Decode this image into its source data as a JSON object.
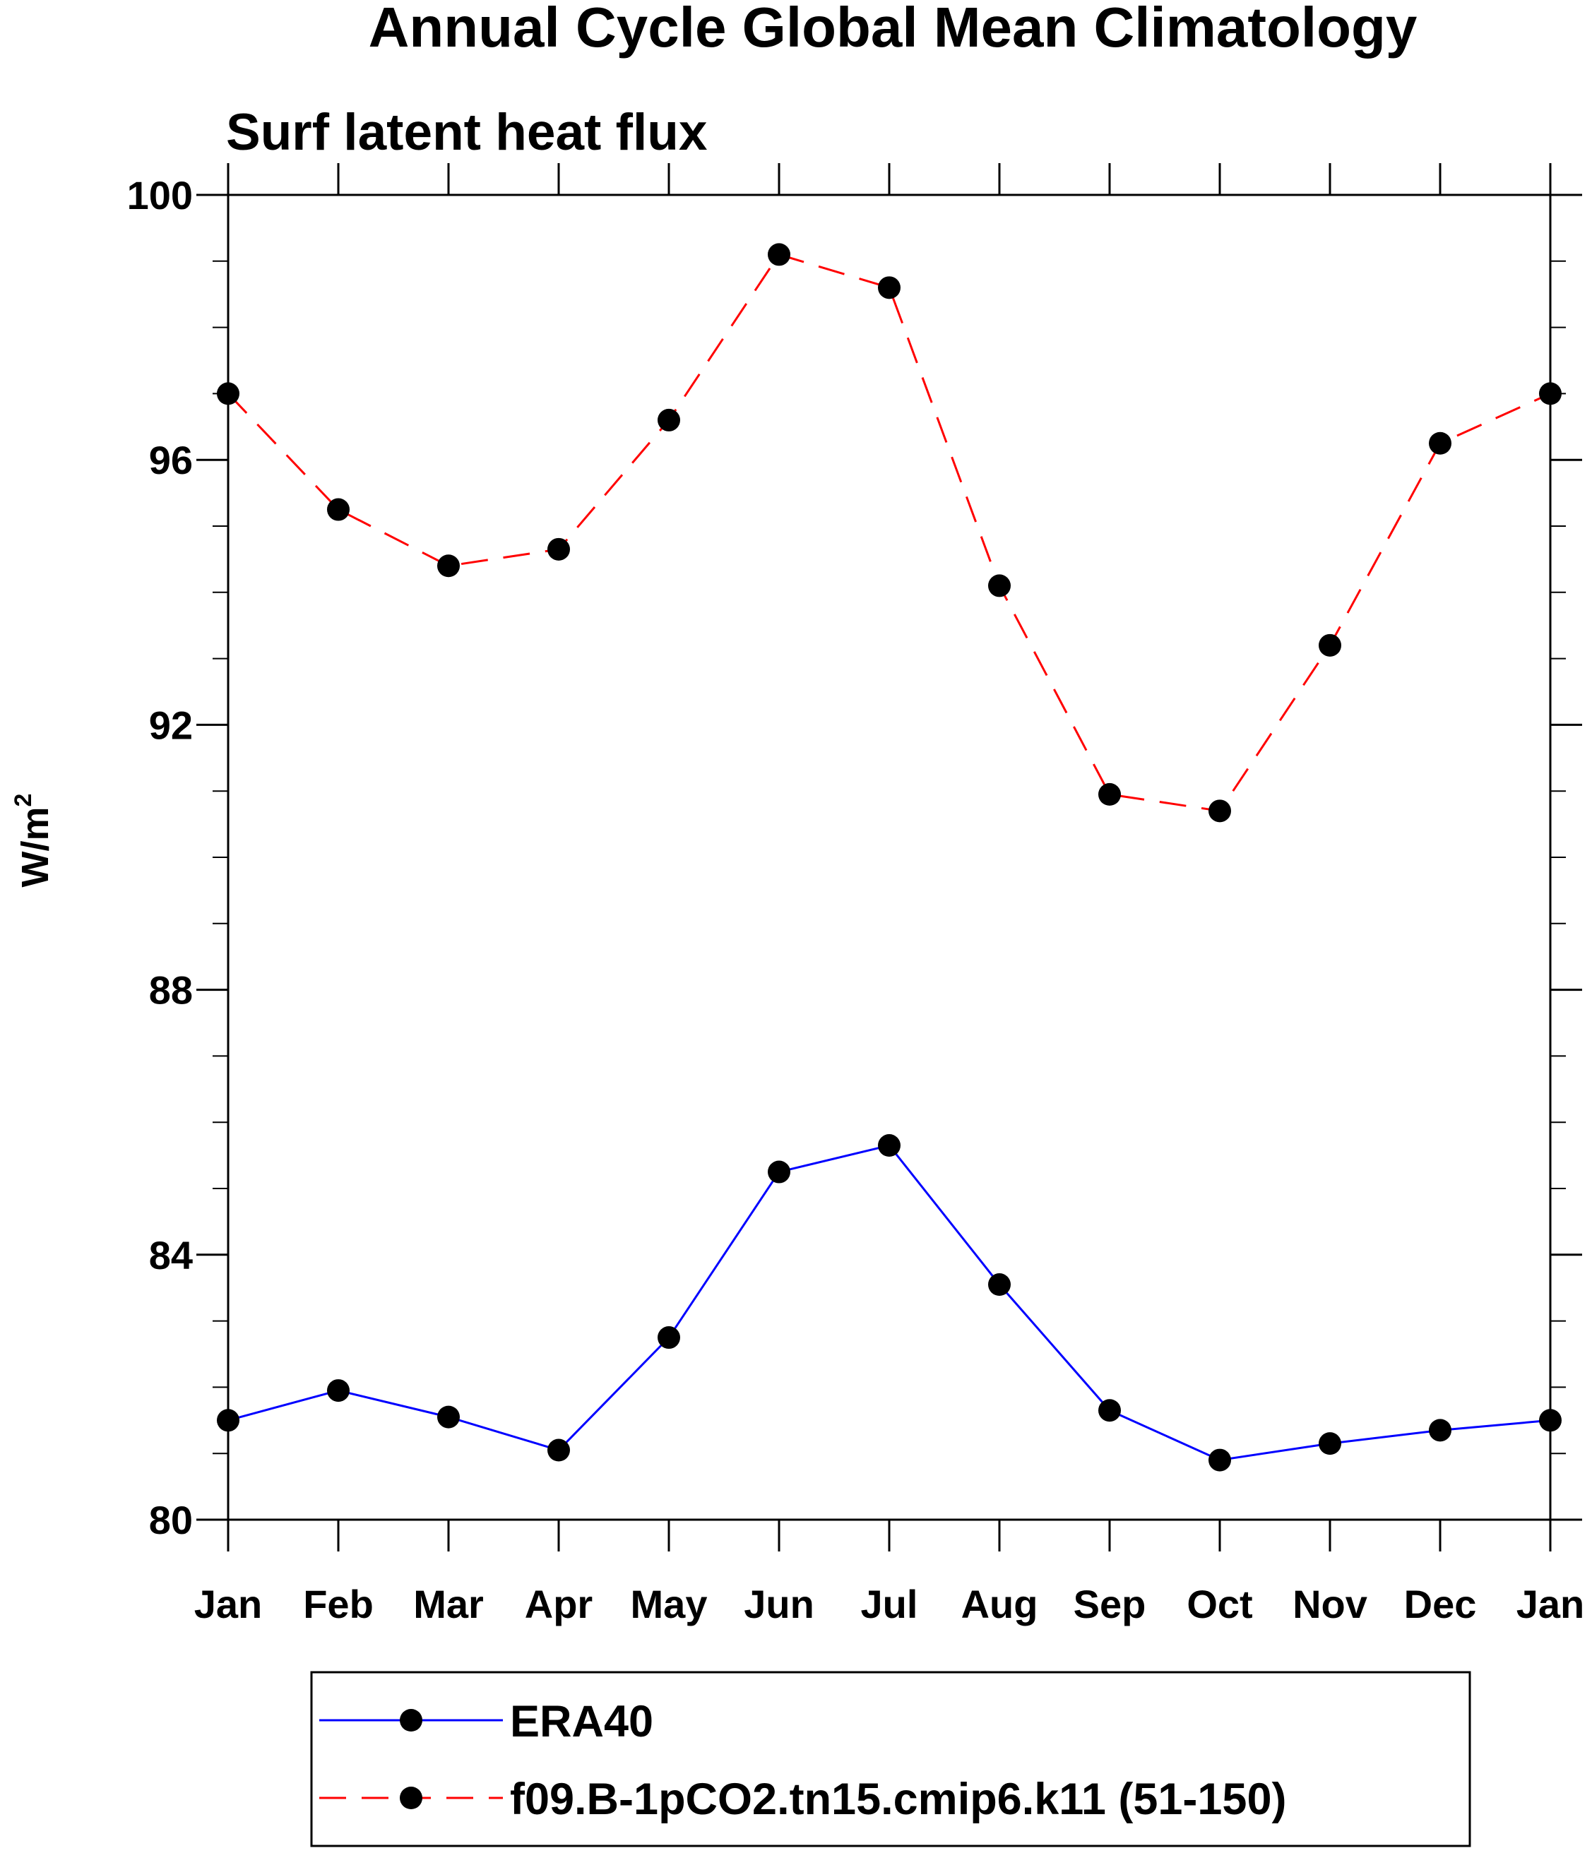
{
  "chart_data": {
    "type": "line",
    "title": "Annual Cycle Global Mean Climatology",
    "subtitle": "Surf latent heat flux",
    "ylabel": "W/m",
    "ylabel_superscript": "2",
    "xlabel": "",
    "categories": [
      "Jan",
      "Feb",
      "Mar",
      "Apr",
      "May",
      "Jun",
      "Jul",
      "Aug",
      "Sep",
      "Oct",
      "Nov",
      "Dec",
      "Jan"
    ],
    "ylim": [
      80,
      100
    ],
    "yticks": [
      80,
      84,
      88,
      92,
      96,
      100
    ],
    "y_minor_step": 1,
    "grid": false,
    "legend_position": "bottom",
    "series": [
      {
        "name": "ERA40",
        "color": "#0000ff",
        "dash": "solid",
        "marker": "filled-circle",
        "values": [
          81.5,
          81.95,
          81.55,
          81.05,
          82.75,
          85.25,
          85.65,
          83.55,
          81.65,
          80.9,
          81.15,
          81.35,
          81.5
        ]
      },
      {
        "name": "f09.B-1pCO2.tn15.cmip6.k11 (51-150)",
        "color": "#ff0000",
        "dash": "dashed",
        "marker": "filled-circle",
        "values": [
          97.0,
          95.25,
          94.4,
          94.65,
          96.6,
          99.1,
          98.6,
          94.1,
          90.95,
          90.7,
          93.2,
          96.25,
          97.0
        ]
      }
    ]
  }
}
